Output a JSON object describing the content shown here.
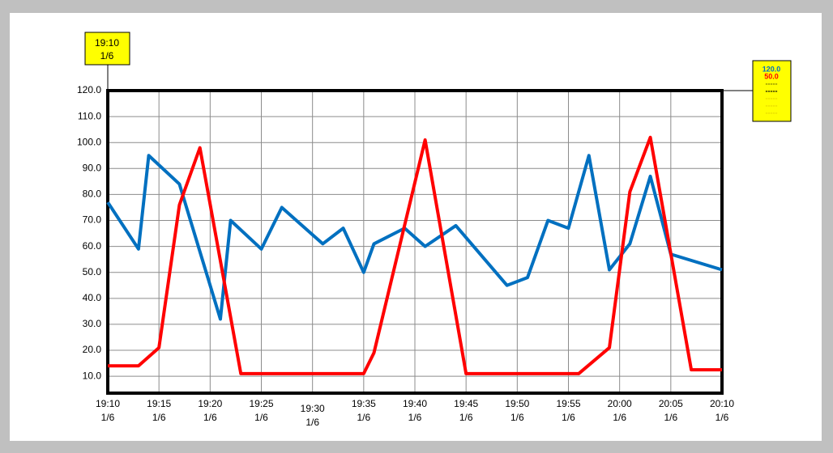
{
  "chart_data": {
    "type": "line",
    "cursor": {
      "time": "19:10",
      "date": "1/6"
    },
    "scale_box": [
      {
        "text": "120.0",
        "color": "#0070c0"
      },
      {
        "text": "50.0",
        "color": "#ff0000"
      },
      {
        "text": "-----",
        "color": "#7a7a00"
      },
      {
        "text": "-----",
        "color": "#000000"
      },
      {
        "text": "-----",
        "color": "#e6d800"
      },
      {
        "text": "-----",
        "color": "#e6d800"
      },
      {
        "text": "-----",
        "color": "#e6d800"
      }
    ],
    "xlim": [
      "19:10",
      "20:10"
    ],
    "xticks": [
      "19:10",
      "19:15",
      "19:20",
      "19:25",
      "19:30",
      "19:35",
      "19:40",
      "19:45",
      "19:50",
      "19:55",
      "20:00",
      "20:05",
      "20:10"
    ],
    "x_date": "1/6",
    "ylim": [
      3.5,
      120
    ],
    "yticks": [
      {
        "value": 10,
        "label": "10.0"
      },
      {
        "value": 20,
        "label": "20.0"
      },
      {
        "value": 30,
        "label": "30.0"
      },
      {
        "value": 40,
        "label": "40.0"
      },
      {
        "value": 50,
        "label": "50.0"
      },
      {
        "value": 60,
        "label": "60.0"
      },
      {
        "value": 70,
        "label": "70.0"
      },
      {
        "value": 80,
        "label": "80.0"
      },
      {
        "value": 90,
        "label": "90.0"
      },
      {
        "value": 100,
        "label": "100.0"
      },
      {
        "value": 110,
        "label": "110.0"
      },
      {
        "value": 120,
        "label": "120.0"
      }
    ],
    "grid": true,
    "series": [
      {
        "color": "#0070c0",
        "x": [
          "19:10",
          "19:13",
          "19:14",
          "19:17",
          "19:21",
          "19:22",
          "19:25",
          "19:27",
          "19:31",
          "19:33",
          "19:35",
          "19:36",
          "19:39",
          "19:41",
          "19:44",
          "19:49",
          "19:51",
          "19:53",
          "19:55",
          "19:57",
          "19:59",
          "20:01",
          "20:03",
          "20:05",
          "20:10"
        ],
        "values": [
          77,
          59,
          95,
          84,
          32,
          70,
          59,
          75,
          61,
          67,
          50,
          61,
          67,
          60,
          68,
          45,
          48,
          70,
          67,
          95,
          51,
          61,
          87,
          57,
          51
        ]
      },
      {
        "color": "#ff0000",
        "x": [
          "19:10",
          "19:13",
          "19:15",
          "19:17",
          "19:19",
          "19:23",
          "19:35",
          "19:36",
          "19:41",
          "19:45",
          "19:56",
          "19:59",
          "20:01",
          "20:03",
          "20:07",
          "20:10"
        ],
        "values": [
          14,
          14,
          21,
          76,
          98,
          11,
          11,
          19,
          101,
          11,
          11,
          21,
          81,
          102,
          12.5,
          12.5
        ]
      }
    ]
  }
}
